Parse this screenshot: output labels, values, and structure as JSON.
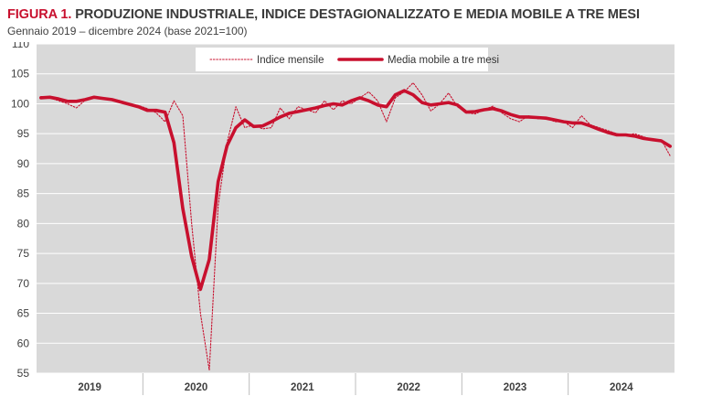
{
  "header": {
    "figure_label": "FIGURA 1.",
    "title": "PRODUZIONE INDUSTRIALE, INDICE DESTAGIONALIZZATO E MEDIA MOBILE A TRE MESI",
    "subtitle": "Gennaio 2019 – dicembre 2024 (base 2021=100)"
  },
  "colors": {
    "plot_background": "#d9d9d9",
    "series": "#c8102e",
    "gridline": "#ffffff"
  },
  "chart_data": {
    "type": "line",
    "title": "PRODUZIONE INDUSTRIALE, INDICE DESTAGIONALIZZATO E MEDIA MOBILE A TRE MESI",
    "subtitle": "Gennaio 2019 – dicembre 2024 (base 2021=100)",
    "xlabel": "",
    "ylabel": "",
    "ylim": [
      55,
      110
    ],
    "yticks": [
      55,
      60,
      65,
      70,
      75,
      80,
      85,
      90,
      95,
      100,
      105,
      110
    ],
    "year_labels": [
      "2019",
      "2020",
      "2021",
      "2022",
      "2023",
      "2024"
    ],
    "grid": "horizontal",
    "legend_position": "top-center",
    "series": [
      {
        "name": "Indice mensile",
        "style": "dotted",
        "values": [
          101.2,
          101.0,
          100.5,
          100.0,
          99.3,
          100.6,
          101.2,
          101.0,
          100.8,
          100.5,
          100.0,
          99.7,
          99.2,
          98.5,
          97.0,
          100.5,
          98.0,
          80.0,
          65.0,
          55.5,
          83.0,
          93.5,
          99.5,
          96.0,
          96.5,
          95.8,
          96.0,
          99.3,
          97.5,
          99.5,
          99.0,
          98.5,
          100.5,
          99.0,
          100.5,
          100.0,
          101.0,
          102.0,
          100.5,
          97.0,
          101.0,
          102.0,
          103.5,
          101.5,
          98.8,
          100.0,
          101.8,
          99.5,
          98.5,
          98.3,
          99.0,
          99.6,
          98.5,
          97.5,
          97.0,
          98.0,
          97.5,
          97.6,
          97.0,
          97.0,
          96.0,
          98.0,
          96.5,
          96.0,
          95.5,
          95.0,
          94.8,
          95.0,
          94.5,
          94.0,
          94.0,
          91.3
        ]
      },
      {
        "name": "Media mobile a tre mesi",
        "style": "solid",
        "values": [
          101.0,
          101.1,
          100.8,
          100.4,
          100.4,
          100.7,
          101.1,
          100.9,
          100.7,
          100.3,
          99.9,
          99.5,
          98.9,
          98.9,
          98.6,
          93.5,
          82.5,
          74.5,
          69.0,
          74.0,
          87.0,
          93.0,
          96.0,
          97.3,
          96.2,
          96.3,
          97.0,
          97.8,
          98.4,
          98.7,
          99.0,
          99.3,
          99.7,
          100.0,
          99.8,
          100.5,
          101.0,
          100.5,
          99.8,
          99.5,
          101.5,
          102.2,
          101.5,
          100.2,
          99.8,
          100.0,
          100.2,
          99.8,
          98.6,
          98.7,
          99.0,
          99.2,
          98.8,
          98.2,
          97.8,
          97.8,
          97.7,
          97.6,
          97.3,
          97.0,
          96.8,
          96.8,
          96.3,
          95.7,
          95.2,
          94.8,
          94.8,
          94.6,
          94.2,
          94.0,
          93.8,
          92.9
        ]
      }
    ]
  }
}
